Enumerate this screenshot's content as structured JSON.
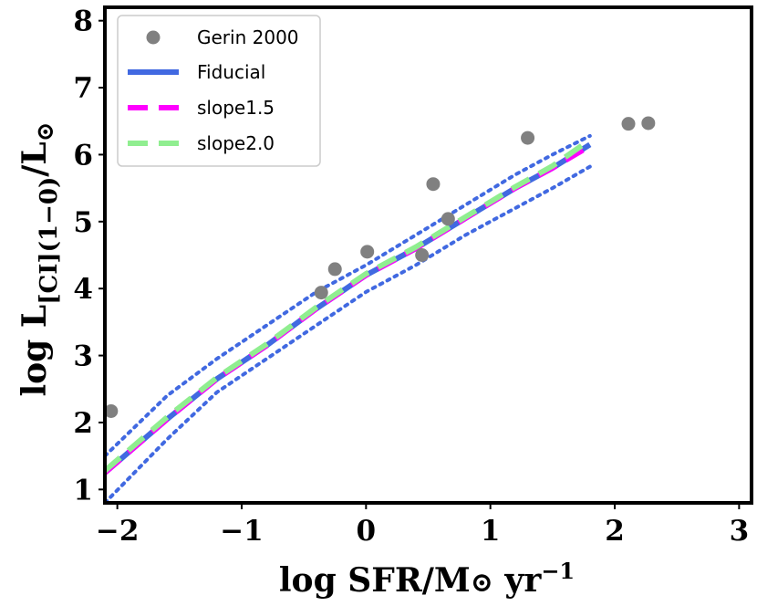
{
  "chart_data": {
    "type": "line",
    "xlabel": "log SFR/M⊙ yr⁻¹",
    "ylabel": "log L[CI](1−0)/L⊙",
    "xlim": [
      -2.1,
      3.1
    ],
    "ylim": [
      0.8,
      8.2
    ],
    "xticks": [
      -2,
      -1,
      0,
      1,
      2,
      3
    ],
    "yticks": [
      1,
      2,
      3,
      4,
      5,
      6,
      7,
      8
    ],
    "xtick_labels": [
      "−2",
      "−1",
      "0",
      "1",
      "2",
      "3"
    ],
    "ytick_labels": [
      "1",
      "2",
      "3",
      "4",
      "5",
      "6",
      "7",
      "8"
    ],
    "legend_position": "top-left",
    "series": [
      {
        "name": "Gerin 2000",
        "kind": "scatter",
        "color": "#808080",
        "x": [
          -2.05,
          -0.36,
          -0.25,
          0.01,
          0.45,
          0.54,
          0.66,
          1.3,
          2.11,
          2.27
        ],
        "y": [
          2.17,
          3.94,
          4.29,
          4.55,
          4.5,
          5.56,
          5.04,
          6.25,
          6.46,
          6.47
        ]
      },
      {
        "name": "Fiducial",
        "kind": "line",
        "color": "#4169e1",
        "x": [
          -2.1,
          -1.6,
          -1.2,
          -0.8,
          -0.4,
          0.0,
          0.4,
          0.8,
          1.2,
          1.5,
          1.8
        ],
        "y": [
          1.25,
          2.05,
          2.65,
          3.15,
          3.7,
          4.2,
          4.6,
          5.05,
          5.5,
          5.8,
          6.15
        ]
      },
      {
        "name": "slope1.5",
        "kind": "line",
        "style": "dashed",
        "color": "#ff00ff",
        "x": [
          -2.1,
          -1.6,
          -1.2,
          -0.8,
          -0.4,
          0.0,
          0.4,
          0.8,
          1.2,
          1.5,
          1.8
        ],
        "y": [
          1.25,
          2.05,
          2.65,
          3.15,
          3.7,
          4.2,
          4.6,
          5.05,
          5.5,
          5.8,
          6.13
        ]
      },
      {
        "name": "slope2.0",
        "kind": "line",
        "style": "dashed",
        "color": "#90ee90",
        "x": [
          -2.1,
          -1.6,
          -1.2,
          -0.8,
          -0.4,
          0.0,
          0.4,
          0.8,
          1.2,
          1.5,
          1.8
        ],
        "y": [
          1.28,
          2.08,
          2.67,
          3.17,
          3.72,
          4.22,
          4.62,
          5.07,
          5.52,
          5.83,
          6.22
        ]
      },
      {
        "name": "Fiducial upper bound",
        "kind": "line",
        "style": "dotted",
        "color": "#4169e1",
        "x": [
          -2.1,
          -1.6,
          -1.2,
          -0.8,
          -0.4,
          0.0,
          0.4,
          0.8,
          1.2,
          1.5,
          1.8
        ],
        "y": [
          1.5,
          2.4,
          2.95,
          3.45,
          3.95,
          4.35,
          4.8,
          5.25,
          5.7,
          6.0,
          6.28
        ]
      },
      {
        "name": "Fiducial lower bound",
        "kind": "line",
        "style": "dotted",
        "color": "#4169e1",
        "x": [
          -2.1,
          -1.6,
          -1.2,
          -0.8,
          -0.4,
          0.0,
          0.4,
          0.8,
          1.2,
          1.5,
          1.8
        ],
        "y": [
          0.8,
          1.75,
          2.45,
          2.95,
          3.45,
          3.95,
          4.35,
          4.8,
          5.2,
          5.5,
          5.82
        ]
      }
    ],
    "legend": [
      "Gerin 2000",
      "Fiducial",
      "slope1.5",
      "slope2.0"
    ]
  }
}
